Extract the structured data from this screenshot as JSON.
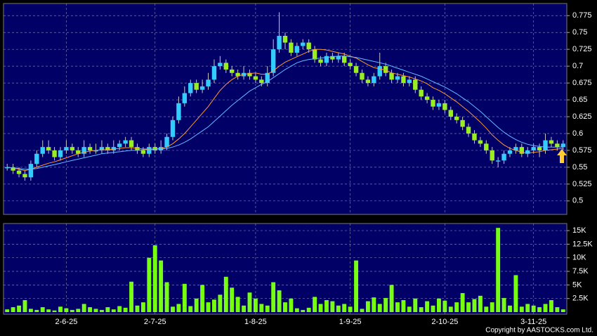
{
  "chart_data": [
    {
      "type": "candlestick",
      "up_color": "#33ccff",
      "down_color": "#99ee22",
      "wick_color": "#c8c8c8",
      "ylim": [
        0.48,
        0.793
      ],
      "yticks": [
        0.5,
        0.525,
        0.55,
        0.575,
        0.6,
        0.625,
        0.65,
        0.675,
        0.7,
        0.725,
        0.75,
        0.775
      ],
      "grid": true,
      "open": [
        0.55,
        0.55,
        0.545,
        0.54,
        0.535,
        0.555,
        0.57,
        0.58,
        0.575,
        0.565,
        0.575,
        0.58,
        0.575,
        0.57,
        0.58,
        0.575,
        0.575,
        0.58,
        0.575,
        0.58,
        0.585,
        0.59,
        0.58,
        0.575,
        0.57,
        0.58,
        0.575,
        0.58,
        0.595,
        0.62,
        0.645,
        0.66,
        0.675,
        0.665,
        0.67,
        0.68,
        0.7,
        0.705,
        0.695,
        0.69,
        0.685,
        0.69,
        0.685,
        0.68,
        0.675,
        0.69,
        0.725,
        0.745,
        0.735,
        0.72,
        0.73,
        0.735,
        0.725,
        0.71,
        0.705,
        0.715,
        0.71,
        0.715,
        0.705,
        0.7,
        0.69,
        0.68,
        0.675,
        0.685,
        0.7,
        0.69,
        0.68,
        0.685,
        0.675,
        0.68,
        0.665,
        0.655,
        0.65,
        0.64,
        0.645,
        0.635,
        0.625,
        0.62,
        0.61,
        0.6,
        0.59,
        0.585,
        0.575,
        0.56,
        0.56,
        0.57,
        0.575,
        0.58,
        0.57,
        0.575,
        0.58,
        0.575,
        0.59,
        0.585,
        0.58
      ],
      "high": [
        0.555,
        0.555,
        0.55,
        0.545,
        0.56,
        0.575,
        0.59,
        0.59,
        0.58,
        0.58,
        0.59,
        0.585,
        0.58,
        0.59,
        0.585,
        0.585,
        0.59,
        0.585,
        0.59,
        0.59,
        0.595,
        0.595,
        0.585,
        0.58,
        0.585,
        0.585,
        0.59,
        0.6,
        0.625,
        0.655,
        0.67,
        0.68,
        0.68,
        0.68,
        0.69,
        0.71,
        0.715,
        0.71,
        0.7,
        0.695,
        0.7,
        0.695,
        0.69,
        0.685,
        0.7,
        0.74,
        0.78,
        0.75,
        0.74,
        0.735,
        0.74,
        0.74,
        0.73,
        0.715,
        0.72,
        0.72,
        0.72,
        0.72,
        0.71,
        0.705,
        0.695,
        0.685,
        0.69,
        0.72,
        0.705,
        0.695,
        0.69,
        0.69,
        0.685,
        0.685,
        0.67,
        0.66,
        0.655,
        0.65,
        0.65,
        0.64,
        0.63,
        0.625,
        0.615,
        0.605,
        0.595,
        0.59,
        0.58,
        0.565,
        0.575,
        0.58,
        0.585,
        0.585,
        0.58,
        0.585,
        0.585,
        0.6,
        0.595,
        0.59,
        0.59
      ],
      "low": [
        0.545,
        0.54,
        0.535,
        0.53,
        0.53,
        0.55,
        0.565,
        0.57,
        0.56,
        0.56,
        0.57,
        0.57,
        0.565,
        0.565,
        0.57,
        0.57,
        0.57,
        0.57,
        0.57,
        0.575,
        0.58,
        0.575,
        0.57,
        0.565,
        0.565,
        0.57,
        0.57,
        0.575,
        0.59,
        0.615,
        0.64,
        0.655,
        0.66,
        0.66,
        0.665,
        0.675,
        0.695,
        0.69,
        0.685,
        0.68,
        0.68,
        0.68,
        0.675,
        0.67,
        0.67,
        0.685,
        0.72,
        0.725,
        0.715,
        0.715,
        0.725,
        0.72,
        0.705,
        0.7,
        0.7,
        0.705,
        0.705,
        0.7,
        0.695,
        0.685,
        0.675,
        0.67,
        0.67,
        0.68,
        0.685,
        0.675,
        0.675,
        0.67,
        0.67,
        0.66,
        0.65,
        0.645,
        0.635,
        0.635,
        0.63,
        0.62,
        0.615,
        0.605,
        0.595,
        0.585,
        0.58,
        0.57,
        0.555,
        0.55,
        0.555,
        0.565,
        0.57,
        0.565,
        0.565,
        0.57,
        0.565,
        0.57,
        0.58,
        0.575,
        0.575
      ],
      "close": [
        0.55,
        0.545,
        0.54,
        0.535,
        0.555,
        0.57,
        0.58,
        0.575,
        0.565,
        0.575,
        0.58,
        0.575,
        0.57,
        0.58,
        0.575,
        0.575,
        0.58,
        0.575,
        0.58,
        0.585,
        0.59,
        0.58,
        0.575,
        0.57,
        0.58,
        0.575,
        0.58,
        0.595,
        0.62,
        0.645,
        0.66,
        0.675,
        0.665,
        0.67,
        0.68,
        0.7,
        0.705,
        0.695,
        0.69,
        0.685,
        0.69,
        0.685,
        0.68,
        0.675,
        0.69,
        0.725,
        0.745,
        0.735,
        0.72,
        0.73,
        0.735,
        0.725,
        0.71,
        0.705,
        0.715,
        0.71,
        0.715,
        0.705,
        0.7,
        0.69,
        0.68,
        0.675,
        0.685,
        0.7,
        0.69,
        0.68,
        0.685,
        0.675,
        0.68,
        0.665,
        0.655,
        0.65,
        0.64,
        0.645,
        0.635,
        0.625,
        0.62,
        0.61,
        0.6,
        0.59,
        0.585,
        0.575,
        0.56,
        0.56,
        0.57,
        0.575,
        0.58,
        0.57,
        0.575,
        0.58,
        0.575,
        0.59,
        0.585,
        0.58,
        0.585
      ],
      "ma_lines": [
        {
          "color": "#ff9933",
          "values": [
            0.55,
            0.549,
            0.547,
            0.545,
            0.547,
            0.55,
            0.553,
            0.556,
            0.558,
            0.561,
            0.564,
            0.567,
            0.57,
            0.572,
            0.574,
            0.575,
            0.576,
            0.576,
            0.577,
            0.578,
            0.579,
            0.579,
            0.578,
            0.577,
            0.577,
            0.577,
            0.578,
            0.58,
            0.585,
            0.592,
            0.6,
            0.61,
            0.62,
            0.63,
            0.64,
            0.652,
            0.664,
            0.673,
            0.68,
            0.685,
            0.688,
            0.689,
            0.69,
            0.688,
            0.688,
            0.693,
            0.7,
            0.706,
            0.71,
            0.714,
            0.718,
            0.722,
            0.725,
            0.725,
            0.724,
            0.722,
            0.72,
            0.718,
            0.715,
            0.712,
            0.707,
            0.702,
            0.698,
            0.696,
            0.694,
            0.69,
            0.688,
            0.686,
            0.684,
            0.681,
            0.678,
            0.674,
            0.668,
            0.664,
            0.659,
            0.653,
            0.647,
            0.64,
            0.633,
            0.625,
            0.617,
            0.608,
            0.598,
            0.59,
            0.583,
            0.578,
            0.575,
            0.572,
            0.571,
            0.572,
            0.573,
            0.575,
            0.576,
            0.577,
            0.578
          ]
        },
        {
          "color": "#66bbff",
          "values": [
            0.55,
            0.549,
            0.548,
            0.547,
            0.547,
            0.548,
            0.55,
            0.552,
            0.554,
            0.556,
            0.558,
            0.56,
            0.562,
            0.564,
            0.566,
            0.568,
            0.57,
            0.571,
            0.572,
            0.573,
            0.574,
            0.575,
            0.575,
            0.576,
            0.576,
            0.577,
            0.577,
            0.578,
            0.58,
            0.583,
            0.587,
            0.592,
            0.598,
            0.604,
            0.61,
            0.618,
            0.626,
            0.634,
            0.642,
            0.649,
            0.656,
            0.663,
            0.668,
            0.673,
            0.677,
            0.683,
            0.689,
            0.695,
            0.7,
            0.705,
            0.708,
            0.71,
            0.711,
            0.712,
            0.713,
            0.714,
            0.715,
            0.715,
            0.714,
            0.713,
            0.711,
            0.709,
            0.707,
            0.705,
            0.703,
            0.7,
            0.697,
            0.694,
            0.691,
            0.688,
            0.685,
            0.681,
            0.677,
            0.673,
            0.669,
            0.664,
            0.659,
            0.653,
            0.647,
            0.64,
            0.633,
            0.625,
            0.617,
            0.609,
            0.602,
            0.596,
            0.591,
            0.587,
            0.584,
            0.582,
            0.581,
            0.58,
            0.58,
            0.58,
            0.58
          ]
        }
      ]
    },
    {
      "type": "bar",
      "color": "#77ff11",
      "ylim": [
        0,
        16300
      ],
      "yticks": [
        {
          "value": 2500,
          "label": "2.5K"
        },
        {
          "value": 5000,
          "label": "5K"
        },
        {
          "value": 7500,
          "label": "7.5K"
        },
        {
          "value": 10000,
          "label": "10K"
        },
        {
          "value": 12500,
          "label": "12.5K"
        },
        {
          "value": 15000,
          "label": "15K"
        }
      ],
      "grid": true,
      "categories": [
        null,
        null,
        null,
        null,
        null,
        null,
        null,
        null,
        null,
        null,
        "2-6-25",
        null,
        null,
        null,
        null,
        null,
        null,
        null,
        null,
        null,
        null,
        null,
        null,
        null,
        null,
        "2-7-25",
        null,
        null,
        null,
        null,
        null,
        null,
        null,
        null,
        null,
        null,
        null,
        null,
        null,
        null,
        null,
        null,
        "1-8-25",
        null,
        null,
        null,
        null,
        null,
        null,
        null,
        null,
        null,
        null,
        null,
        null,
        null,
        null,
        null,
        "1-9-25",
        null,
        null,
        null,
        null,
        null,
        null,
        null,
        null,
        null,
        null,
        null,
        null,
        null,
        null,
        null,
        "2-10-25",
        null,
        null,
        null,
        null,
        null,
        null,
        null,
        null,
        null,
        null,
        null,
        null,
        null,
        null,
        "3-11-25",
        null,
        null,
        null,
        null,
        null
      ],
      "values": [
        500,
        900,
        1200,
        2200,
        600,
        400,
        900,
        500,
        300,
        1000,
        700,
        400,
        600,
        1500,
        900,
        600,
        400,
        900,
        500,
        1100,
        800,
        5600,
        1200,
        1800,
        10000,
        12300,
        9500,
        5500,
        1000,
        1500,
        5200,
        1100,
        2500,
        5000,
        1800,
        2300,
        3200,
        6500,
        4500,
        2800,
        1200,
        3600,
        2500,
        1500,
        1200,
        5500,
        4000,
        1800,
        2500,
        700,
        400,
        800,
        2800,
        1500,
        2200,
        2000,
        1200,
        1500,
        1000,
        9500,
        600,
        2000,
        2700,
        1500,
        2600,
        5000,
        1800,
        2200,
        1000,
        2500,
        900,
        2000,
        1200,
        2500,
        2100,
        1000,
        1800,
        3500,
        1800,
        2400,
        3000,
        1000,
        1800,
        15500,
        2600,
        1200,
        6800,
        1000,
        1500,
        1200,
        900,
        1500,
        2200,
        900,
        500
      ]
    }
  ],
  "footer": "Copyright by AASTOCKS.com Ltd."
}
